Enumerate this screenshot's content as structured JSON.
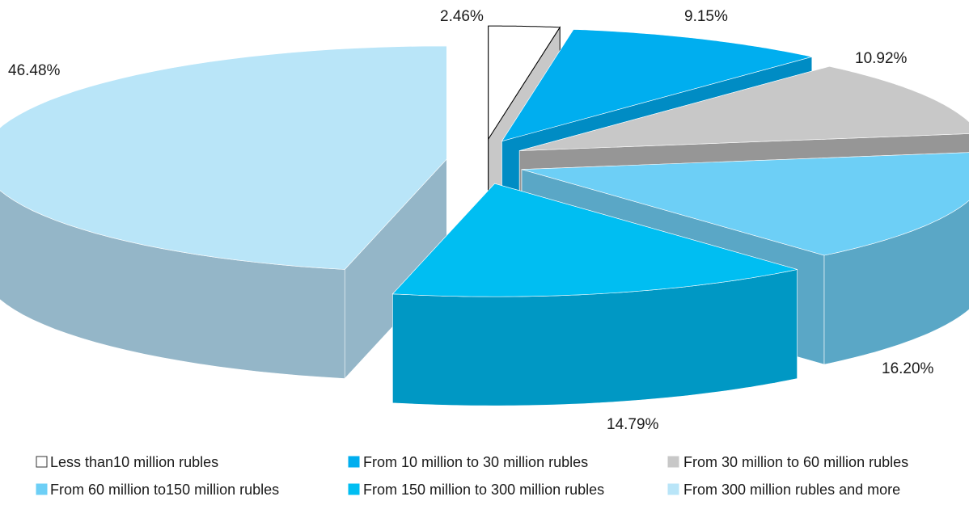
{
  "chart_data": {
    "type": "pie",
    "style": "exploded-3d",
    "title": "",
    "categories": [
      "Less than10 million rubles",
      "From 10 million to 30 million rubles",
      "From 30 million to 60 million rubles",
      "From 60 million to150 million rubles",
      "From 150 million to 300 million rubles",
      "From 300 million rubles and more"
    ],
    "values": [
      2.46,
      9.15,
      10.92,
      16.2,
      14.79,
      46.48
    ],
    "data_labels": [
      "2.46%",
      "9.15%",
      "10.92%",
      "16.20%",
      "14.79%",
      "46.48%"
    ],
    "colors": [
      {
        "top": "#ffffff",
        "side": "#c8c8c8",
        "edge": "#000000"
      },
      {
        "top": "#00aeef",
        "side": "#008cc4",
        "edge": "#00aeef"
      },
      {
        "top": "#c8c8c8",
        "side": "#969696",
        "edge": "#c8c8c8"
      },
      {
        "top": "#6dcff6",
        "side": "#5aa7c6",
        "edge": "#6dcff6"
      },
      {
        "top": "#00bef2",
        "side": "#0098c4",
        "edge": "#00bef2"
      },
      {
        "top": "#b9e5f8",
        "side": "#94b6c8",
        "edge": "#b9e5f8"
      }
    ],
    "legend_position": "bottom",
    "grid": false
  }
}
